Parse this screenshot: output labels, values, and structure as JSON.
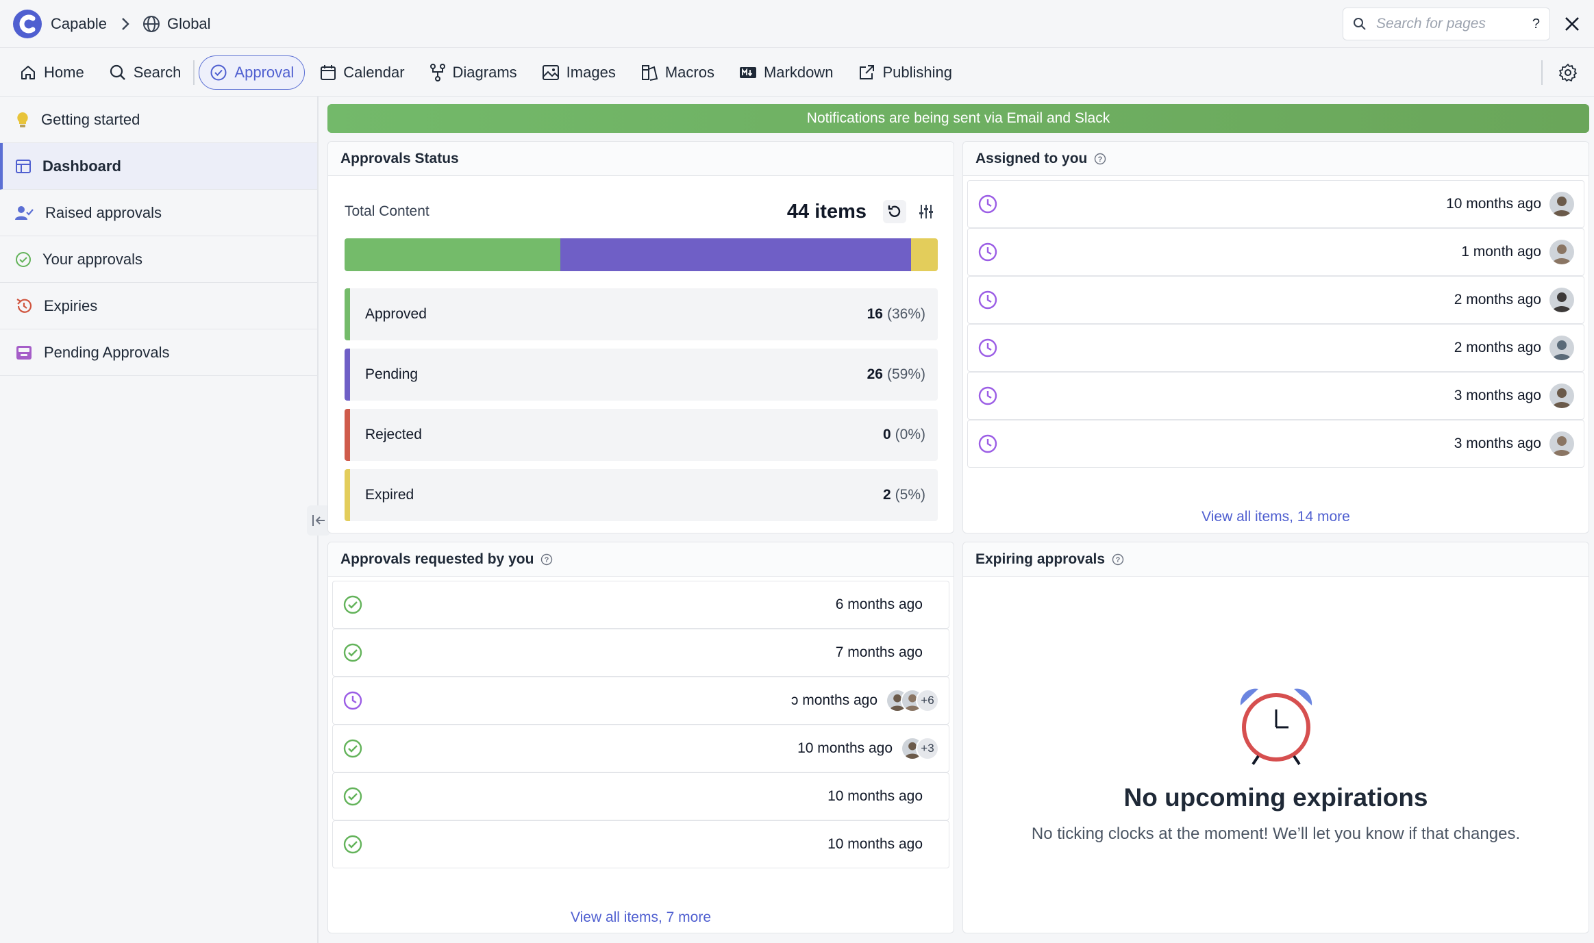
{
  "app": {
    "name": "Capable",
    "space": "Global"
  },
  "search": {
    "placeholder": "Search for pages",
    "help": "?"
  },
  "nav": {
    "home": "Home",
    "search": "Search",
    "approval": "Approval",
    "calendar": "Calendar",
    "diagrams": "Diagrams",
    "images": "Images",
    "macros": "Macros",
    "markdown": "Markdown",
    "publishing": "Publishing"
  },
  "sidebar": {
    "items": [
      {
        "label": "Getting started",
        "icon": "lightbulb-icon"
      },
      {
        "label": "Dashboard",
        "icon": "layout-icon"
      },
      {
        "label": "Raised approvals",
        "icon": "user-check-icon"
      },
      {
        "label": "Your approvals",
        "icon": "check-circle-icon"
      },
      {
        "label": "Expiries",
        "icon": "history-icon"
      },
      {
        "label": "Pending Approvals",
        "icon": "inbox-icon"
      }
    ]
  },
  "banner": "Notifications are being sent via Email and Slack",
  "status": {
    "title": "Approvals Status",
    "total_label": "Total Content",
    "total_count": "44 items",
    "bar_fractions": [
      0.364,
      0.591,
      0.045
    ],
    "colors": {
      "approved": "#74bb6a",
      "pending": "#6f5fc6",
      "rejected": "#cf5b4b",
      "expired": "#e3cd5b"
    },
    "rows": [
      {
        "label": "Approved",
        "count": "16",
        "pct": "(36%)"
      },
      {
        "label": "Pending",
        "count": "26",
        "pct": "(59%)"
      },
      {
        "label": "Rejected",
        "count": "0",
        "pct": "(0%)"
      },
      {
        "label": "Expired",
        "count": "2",
        "pct": "(5%)"
      }
    ]
  },
  "assigned": {
    "title": "Assigned to you",
    "rows": [
      {
        "ago": "10 months ago"
      },
      {
        "ago": "1 month ago"
      },
      {
        "ago": "2 months ago"
      },
      {
        "ago": "2 months ago"
      },
      {
        "ago": "3 months ago"
      },
      {
        "ago": "3 months ago"
      }
    ],
    "view_all": "View all items, 14 more"
  },
  "requested": {
    "title": "Approvals requested by you",
    "rows": [
      {
        "ago": "6 months ago",
        "status": "approved"
      },
      {
        "ago": "7 months ago",
        "status": "approved"
      },
      {
        "ago": "ɔ months ago",
        "status": "pending",
        "more": "+6"
      },
      {
        "ago": "10 months ago",
        "status": "approved",
        "more": "+3"
      },
      {
        "ago": "10 months ago",
        "status": "approved"
      },
      {
        "ago": "10 months ago",
        "status": "approved"
      }
    ],
    "view_all": "View all items, 7 more"
  },
  "expiring": {
    "title": "Expiring approvals",
    "empty_title": "No upcoming expirations",
    "empty_sub": "No ticking clocks at the moment! We’ll let you know if that changes."
  }
}
